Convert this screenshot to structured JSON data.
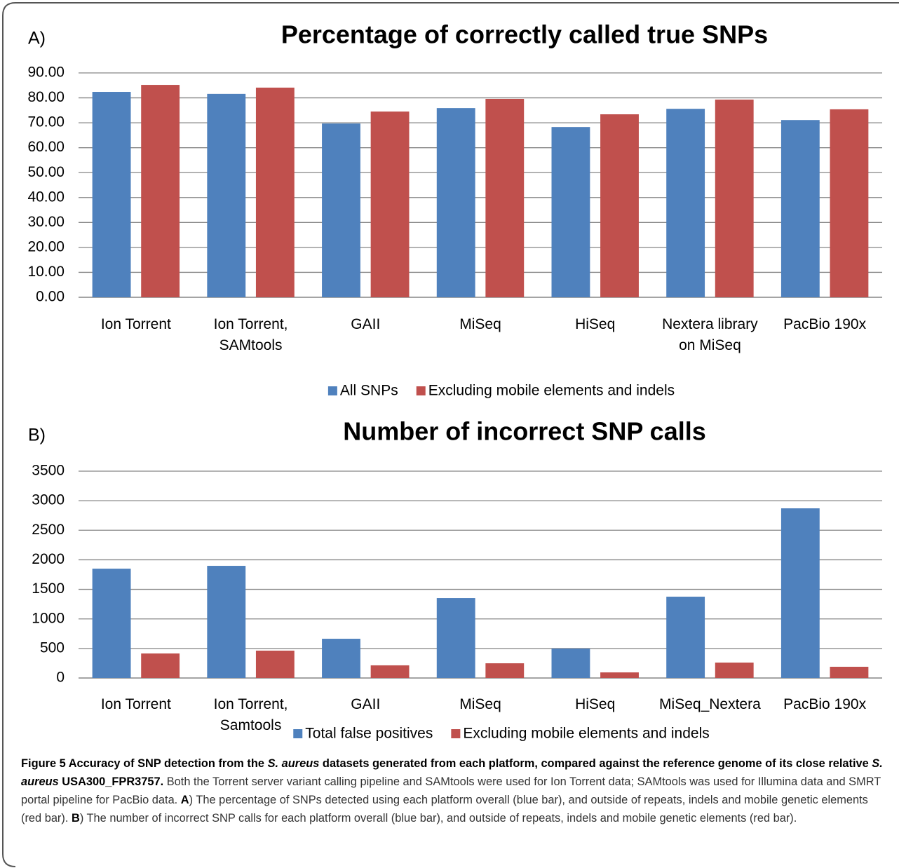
{
  "chart_data": [
    {
      "type": "bar",
      "label": "A)",
      "title": "Percentage of correctly called true SNPs",
      "categories": [
        "Ion Torrent",
        "Ion Torrent, SAMtools",
        "GAII",
        "MiSeq",
        "HiSeq",
        "Nextera library on MiSeq",
        "PacBio 190x"
      ],
      "series": [
        {
          "name": "All SNPs",
          "color": "#4f81bd",
          "values": [
            82.4,
            81.6,
            69.7,
            75.9,
            68.3,
            75.6,
            71.1
          ]
        },
        {
          "name": "Excluding mobile elements and indels",
          "color": "#c0504d",
          "values": [
            85.2,
            84.1,
            74.5,
            79.6,
            73.4,
            79.3,
            75.4
          ]
        }
      ],
      "ylim": [
        0,
        90
      ],
      "yticks": [
        {
          "value": 0,
          "label": "0.00"
        },
        {
          "value": 10,
          "label": "10.00"
        },
        {
          "value": 20,
          "label": "20.00"
        },
        {
          "value": 30,
          "label": "30.00"
        },
        {
          "value": 40,
          "label": "40.00"
        },
        {
          "value": 50,
          "label": "50.00"
        },
        {
          "value": 60,
          "label": "60.00"
        },
        {
          "value": 70,
          "label": "70.00"
        },
        {
          "value": 80,
          "label": "80.00"
        },
        {
          "value": 90,
          "label": "90.00"
        }
      ],
      "grid": true,
      "legend": "bottom"
    },
    {
      "type": "bar",
      "label": "B)",
      "title": "Number of incorrect SNP calls",
      "categories": [
        "Ion Torrent",
        "Ion Torrent, Samtools",
        "GAII",
        "MiSeq",
        "HiSeq",
        "MiSeq_Nextera",
        "PacBio 190x"
      ],
      "series": [
        {
          "name": "Total false positives",
          "color": "#4f81bd",
          "values": [
            1850,
            1898,
            664,
            1352,
            498,
            1376,
            2871
          ]
        },
        {
          "name": "Excluding mobile elements and indels",
          "color": "#c0504d",
          "values": [
            415,
            463,
            214,
            249,
            95,
            261,
            190
          ]
        }
      ],
      "ylim": [
        0,
        3500
      ],
      "yticks": [
        0,
        500,
        1000,
        1500,
        2000,
        2500,
        3000,
        3500
      ],
      "grid": true,
      "legend": "bottom"
    }
  ],
  "caption": [
    {
      "text": "Figure 5 Accuracy of SNP detection from the ",
      "style": "bold"
    },
    {
      "text": "S. aureus",
      "style": "bold-italic"
    },
    {
      "text": " datasets generated from each platform, compared against the reference genome of its close relative ",
      "style": "bold"
    },
    {
      "text": "S. aureus",
      "style": "bold-italic"
    },
    {
      "text": " USA300_FPR3757.",
      "style": "bold"
    },
    {
      "text": " Both the Torrent server variant calling pipeline and SAMtools were used for Ion Torrent data; SAMtools was used for Illumina data and SMRT portal pipeline for PacBio data. ",
      "style": "plain"
    },
    {
      "text": "A",
      "style": "bold"
    },
    {
      "text": ") The percentage of SNPs detected using each platform overall (blue bar), and outside of repeats, indels and mobile genetic elements (red bar). ",
      "style": "plain"
    },
    {
      "text": "B",
      "style": "bold"
    },
    {
      "text": ") The number of incorrect SNP calls for each platform overall (blue bar), and outside of repeats, indels and mobile genetic elements (red bar).",
      "style": "plain"
    }
  ]
}
